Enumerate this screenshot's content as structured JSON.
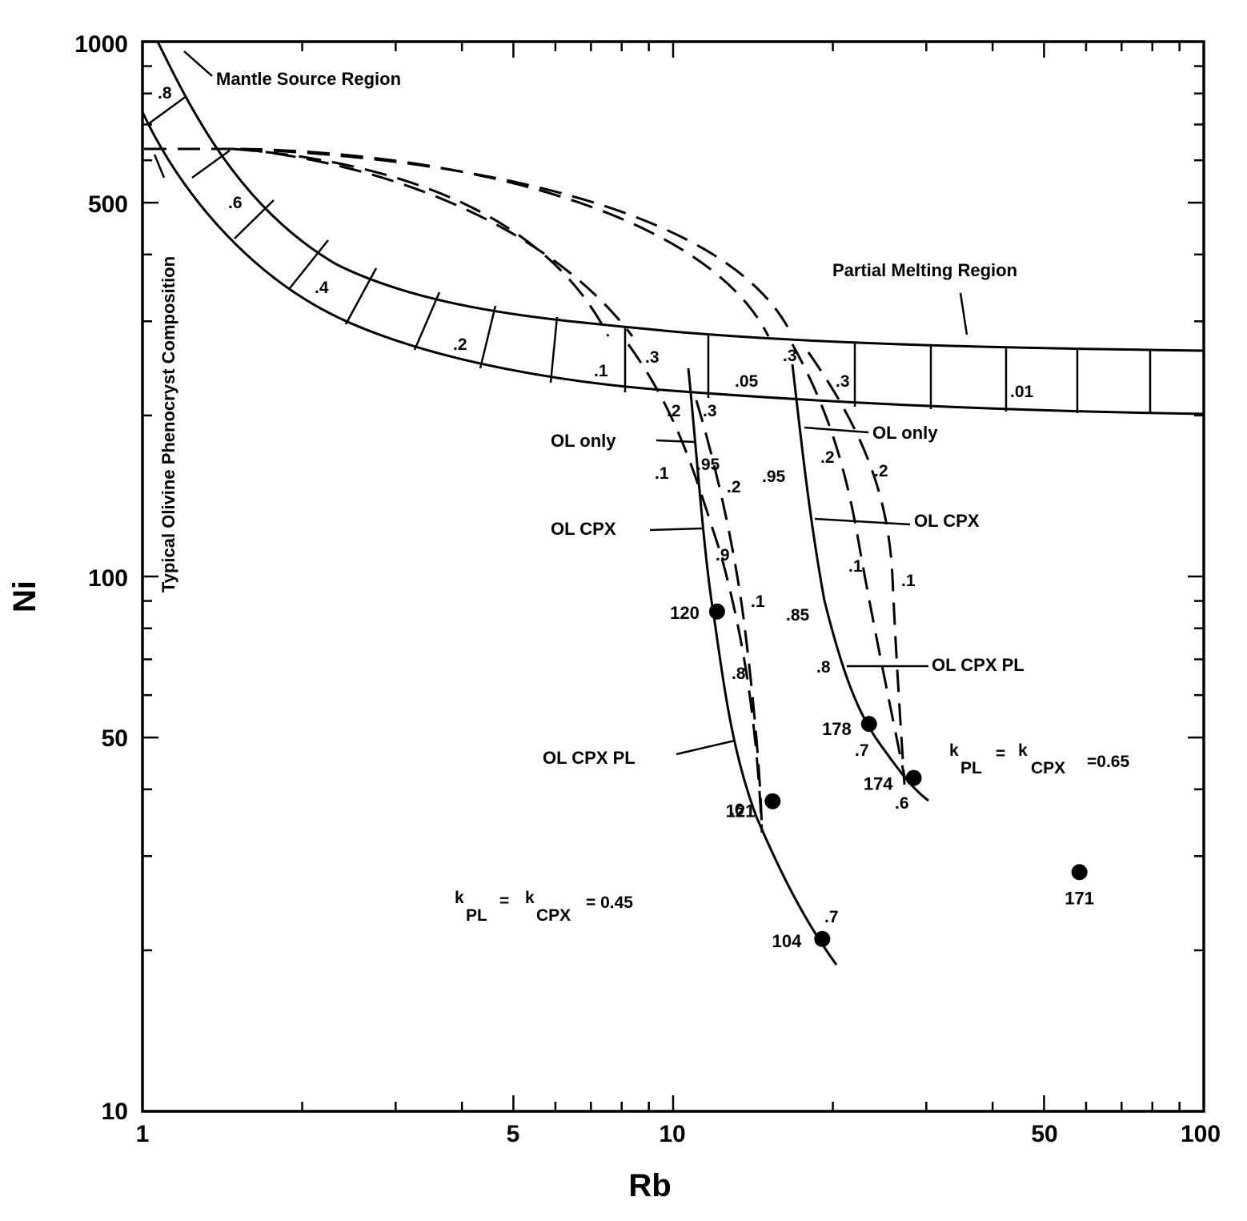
{
  "chart_data": {
    "type": "scatter",
    "title": "",
    "xlabel": "Rb",
    "ylabel": "Ni",
    "xscale": "log",
    "yscale": "log",
    "xlim": [
      1,
      100
    ],
    "ylim": [
      10,
      1000
    ],
    "x_ticks": [
      {
        "value": 1,
        "label": "1"
      },
      {
        "value": 5,
        "label": "5"
      },
      {
        "value": 10,
        "label": "10"
      },
      {
        "value": 50,
        "label": "50"
      },
      {
        "value": 100,
        "label": "100"
      }
    ],
    "y_ticks": [
      {
        "value": 10,
        "label": "10"
      },
      {
        "value": 50,
        "label": "50"
      },
      {
        "value": 100,
        "label": "100"
      },
      {
        "value": 500,
        "label": "500"
      },
      {
        "value": 1000,
        "label": "1000"
      }
    ],
    "grid": false,
    "samples": [
      {
        "label": "120",
        "x": 12.1,
        "y": 86
      },
      {
        "label": "121",
        "x": 15.4,
        "y": 38
      },
      {
        "label": "104",
        "x": 19.1,
        "y": 21
      },
      {
        "label": "178",
        "x": 23.4,
        "y": 53
      },
      {
        "label": "174",
        "x": 28.4,
        "y": 42
      },
      {
        "label": "171",
        "x": 58.3,
        "y": 28
      }
    ],
    "regions": {
      "mantle_source": "Mantle Source Region",
      "partial_melting": "Partial Melting Region",
      "olivine_composition": "Typical Olivine Phenocryst Composition"
    },
    "melt_fraction_labels": [
      ".8",
      ".6",
      ".4",
      ".2",
      ".1",
      ".05",
      ".01"
    ],
    "fractionation_labels": {
      "set_045": [
        ".3",
        ".2",
        ".1",
        ".3",
        ".2",
        ".1",
        ".95",
        ".9",
        ".8",
        ".7",
        ".6"
      ],
      "set_065": [
        ".3",
        ".3",
        ".2",
        ".2",
        ".1",
        ".1",
        ".95",
        ".85",
        ".8",
        ".7",
        ".6"
      ]
    },
    "phase_labels": {
      "ol_only": "OL only",
      "ol_cpx": "OL CPX",
      "ol_cpx_pl": "OL CPX PL"
    },
    "k_labels": {
      "low": {
        "k": "k",
        "pl": "PL",
        "eq": "=",
        "cpx": "CPX",
        "value": "= 0.45"
      },
      "high": {
        "k": "k",
        "pl": "PL",
        "eq": "=",
        "cpx": "CPX",
        "value": "=0.65"
      }
    }
  }
}
